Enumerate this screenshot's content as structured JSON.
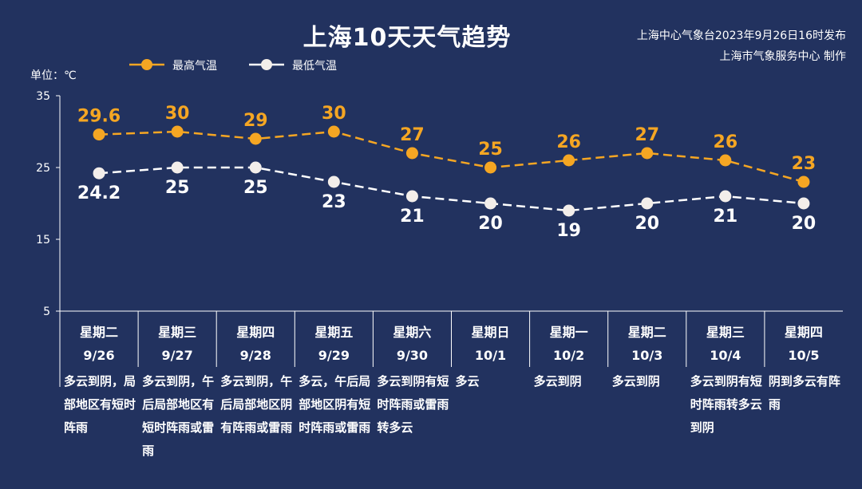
{
  "header": {
    "title": "上海10天天气趋势",
    "source_line1": "上海中心气象台2023年9月26日16时发布",
    "source_line2": "上海市气象服务中心 制作",
    "unit_label": "单位：℃"
  },
  "colors": {
    "background": "#22325f",
    "high_series": "#f5a623",
    "low_series": "#ffffff"
  },
  "legend": {
    "high_label": "最高气温",
    "low_label": "最低气温",
    "placement": "top-left"
  },
  "chart_data": {
    "type": "line",
    "title": "上海10天天气趋势",
    "ylabel": "单位：℃",
    "ylim": [
      5,
      35
    ],
    "yticks": [
      5,
      15,
      25,
      35
    ],
    "grid": false,
    "categories": [
      "9/26",
      "9/27",
      "9/28",
      "9/29",
      "9/30",
      "10/1",
      "10/2",
      "10/3",
      "10/4",
      "10/5"
    ],
    "series": [
      {
        "name": "最高气温",
        "values": [
          29.6,
          30,
          29,
          30,
          27,
          25,
          26,
          27,
          26,
          23
        ],
        "labels": [
          "29.6",
          "30",
          "29",
          "30",
          "27",
          "25",
          "26",
          "27",
          "26",
          "23"
        ]
      },
      {
        "name": "最低气温",
        "values": [
          24.2,
          25,
          25,
          23,
          21,
          20,
          19,
          20,
          21,
          20
        ],
        "labels": [
          "24.2",
          "25",
          "25",
          "23",
          "21",
          "20",
          "19",
          "20",
          "21",
          "20"
        ]
      }
    ]
  },
  "days": [
    {
      "weekday": "星期二",
      "date": "9/26",
      "weather": "多云到阴，局部地区有短时阵雨"
    },
    {
      "weekday": "星期三",
      "date": "9/27",
      "weather": "多云到阴，午后局部地区有短时阵雨或雷雨"
    },
    {
      "weekday": "星期四",
      "date": "9/28",
      "weather": "多云到阴，午后局部地区阴有阵雨或雷雨"
    },
    {
      "weekday": "星期五",
      "date": "9/29",
      "weather": "多云，午后局部地区阴有短时阵雨或雷雨"
    },
    {
      "weekday": "星期六",
      "date": "9/30",
      "weather": "多云到阴有短时阵雨或雷雨转多云"
    },
    {
      "weekday": "星期日",
      "date": "10/1",
      "weather": "多云"
    },
    {
      "weekday": "星期一",
      "date": "10/2",
      "weather": "多云到阴"
    },
    {
      "weekday": "星期二",
      "date": "10/3",
      "weather": "多云到阴"
    },
    {
      "weekday": "星期三",
      "date": "10/4",
      "weather": "多云到阴有短时阵雨转多云到阴"
    },
    {
      "weekday": "星期四",
      "date": "10/5",
      "weather": "阴到多云有阵雨"
    }
  ]
}
